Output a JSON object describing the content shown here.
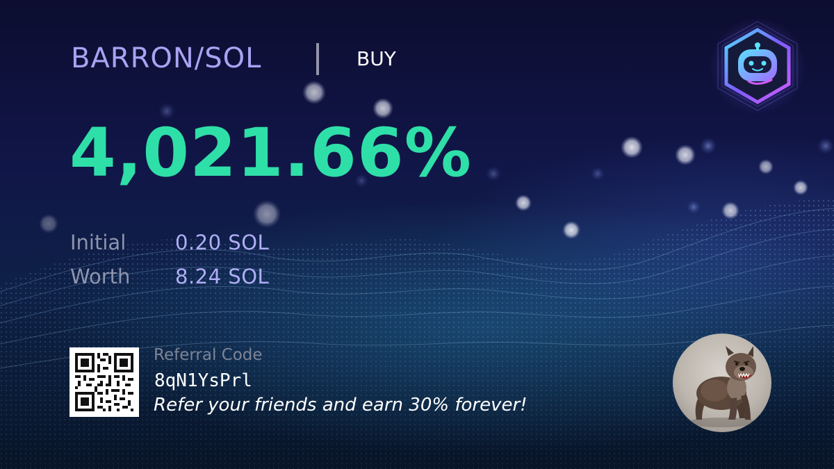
{
  "pair": "BARRON/SOL",
  "side": "BUY",
  "pnl_percent": "4,021.66%",
  "stats": [
    {
      "label": "Initial",
      "value": "0.20 SOL"
    },
    {
      "label": "Worth",
      "value": "8.24 SOL"
    }
  ],
  "referral": {
    "label": "Referral Code",
    "code": "8qN1YsPrl",
    "promo": "Refer your friends and earn 30% forever!"
  },
  "icons": {
    "brand_logo": "robot-head-hexagon-logo",
    "avatar": "angry-bulldog-avatar",
    "qr": "qr-code"
  },
  "colors": {
    "pair": "#a8a3f2",
    "pnl": "#2fdfa8",
    "stat_label": "#8e94ad",
    "stat_value": "#b0adf5",
    "logo_accent": "#7c5cff"
  }
}
